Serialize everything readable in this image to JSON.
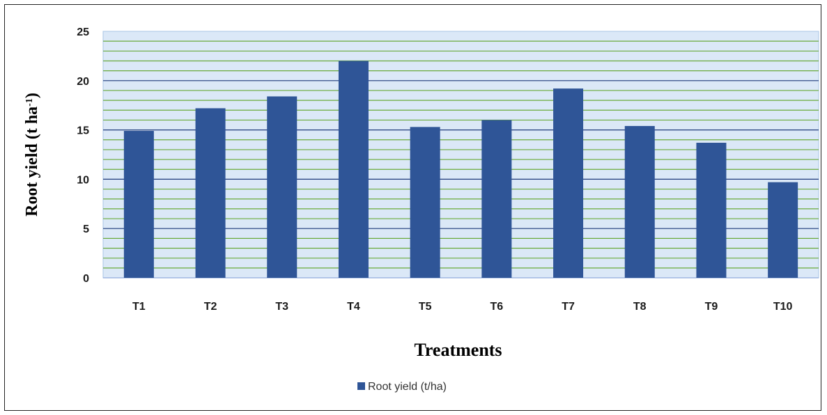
{
  "chart_data": {
    "type": "bar",
    "categories": [
      "T1",
      "T2",
      "T3",
      "T4",
      "T5",
      "T6",
      "T7",
      "T8",
      "T9",
      "T10"
    ],
    "series": [
      {
        "name": "Root yield (t/ha)",
        "values": [
          14.9,
          17.2,
          18.4,
          22.0,
          15.3,
          16.0,
          19.2,
          15.4,
          13.7,
          9.7
        ],
        "color": "#2f5597"
      }
    ],
    "xlabel": "Treatments",
    "ylabel": {
      "main": "Root yield (t ha",
      "superscript": "-1",
      "close": ")"
    },
    "ylim": [
      0,
      25
    ],
    "yticks": [
      0,
      5,
      10,
      15,
      20,
      25
    ],
    "minor_step": 1,
    "grid": true,
    "legend_position": "bottom-center",
    "plot_background": "#dbe8f7",
    "major_grid_color": "#1f3a7a",
    "minor_grid_color": "#6aaa3a"
  }
}
